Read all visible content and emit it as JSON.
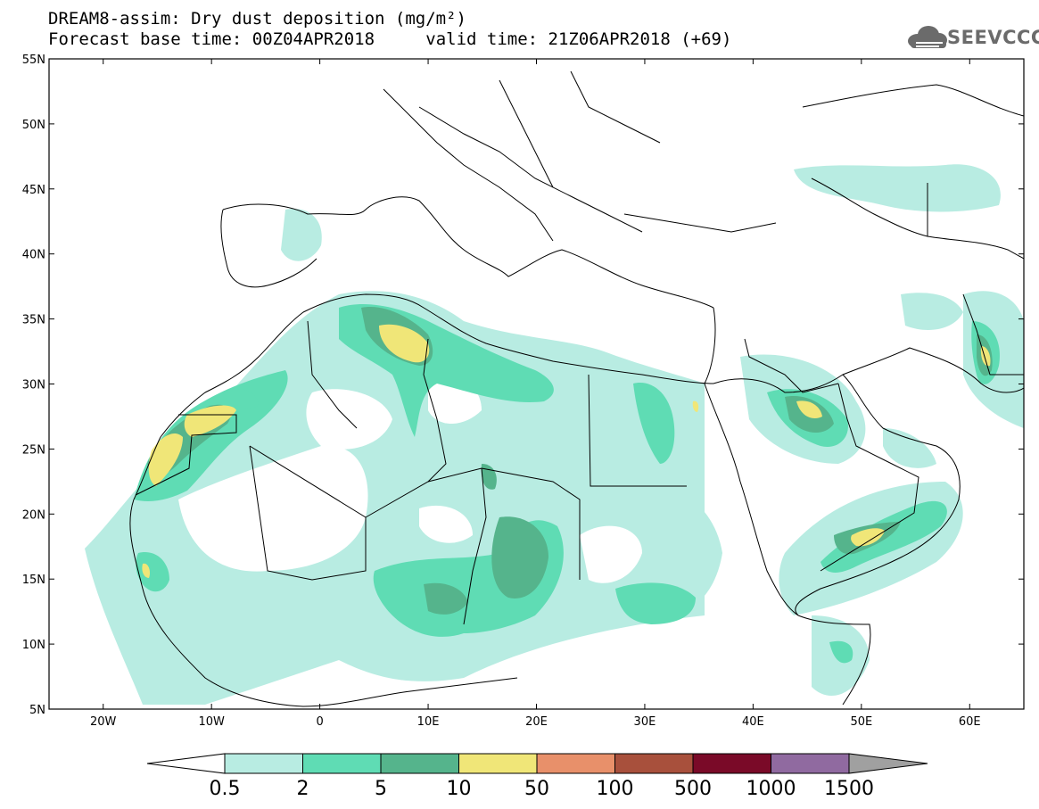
{
  "header": {
    "title": "DREAM8-assim: Dry dust deposition (mg/m²)",
    "forecast_base": "Forecast base time: 00Z04APR2018",
    "valid_time": "valid time: 21Z06APR2018 (+69)"
  },
  "logo": {
    "text": "SEEVCCC",
    "icon": "cloud-logo-icon"
  },
  "map": {
    "lat_labels": [
      "55N",
      "50N",
      "45N",
      "40N",
      "35N",
      "30N",
      "25N",
      "20N",
      "15N",
      "10N",
      "5N"
    ],
    "lon_labels": [
      "20W",
      "10W",
      "0",
      "10E",
      "20E",
      "30E",
      "40E",
      "50E",
      "60E"
    ],
    "lat_range": [
      5,
      55
    ],
    "lon_range": [
      -25,
      65
    ]
  },
  "colorbar": {
    "labels": [
      "0.5",
      "2",
      "5",
      "10",
      "50",
      "100",
      "500",
      "1000",
      "1500"
    ],
    "colors": [
      "#b8ece2",
      "#5fdcb4",
      "#55b48c",
      "#f0e678",
      "#e8906a",
      "#a8503c",
      "#7a0a28",
      "#906aa0"
    ],
    "under_color": "#ffffff",
    "over_color": "#a0a0a0"
  },
  "colors": {
    "level1": "#b8ece2",
    "level2": "#5fdcb4",
    "level3": "#55b48c",
    "level4": "#f0e678",
    "land_boundary": "#000000"
  }
}
